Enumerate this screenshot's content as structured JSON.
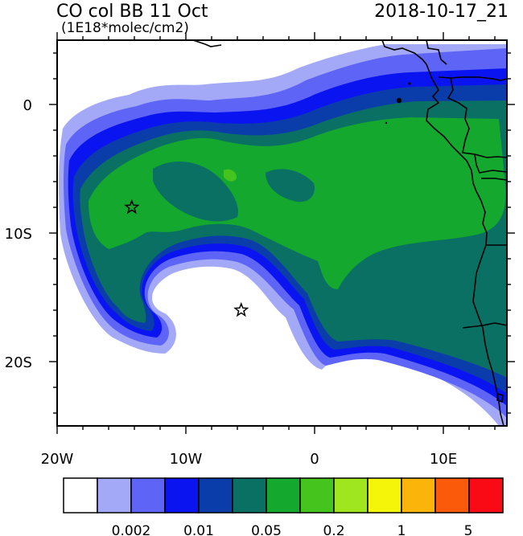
{
  "header": {
    "title": "CO col BB 11 Oct",
    "units": "(1E18*molec/cm2)",
    "datetime": "2018-10-17_21"
  },
  "axes": {
    "lat_labels": [
      "0",
      "10S",
      "20S"
    ],
    "lon_labels": [
      "20W",
      "10W",
      "0",
      "10E"
    ]
  },
  "markers": [
    {
      "name": "star-marker-west",
      "label": "",
      "lon": -14.2,
      "lat": -8.0
    },
    {
      "name": "star-marker-center",
      "label": "",
      "lon": -5.7,
      "lat": -16.0
    }
  ],
  "colorbar": {
    "colors": [
      "#ffffff",
      "#a3a9f7",
      "#5e64f5",
      "#0a14f0",
      "#0a3caa",
      "#0a7064",
      "#14a82e",
      "#46c41e",
      "#a0e61e",
      "#f5f50a",
      "#fab40a",
      "#fa5a0a",
      "#fa0a14"
    ],
    "labels": [
      "0.002",
      "0.01",
      "0.05",
      "0.2",
      "1",
      "5"
    ]
  }
}
